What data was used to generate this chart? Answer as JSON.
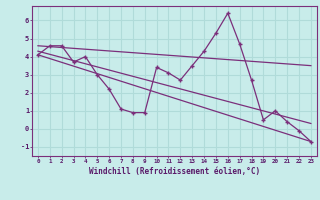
{
  "xlabel": "Windchill (Refroidissement éolien,°C)",
  "background_color": "#c8ecea",
  "line_color": "#7b2f7b",
  "grid_color": "#b0dbd9",
  "xlim": [
    -0.5,
    23.5
  ],
  "ylim": [
    -1.5,
    6.8
  ],
  "xticks": [
    0,
    1,
    2,
    3,
    4,
    5,
    6,
    7,
    8,
    9,
    10,
    11,
    12,
    13,
    14,
    15,
    16,
    17,
    18,
    19,
    20,
    21,
    22,
    23
  ],
  "yticks": [
    -1,
    0,
    1,
    2,
    3,
    4,
    5,
    6
  ],
  "series1_x": [
    0,
    1,
    2,
    3,
    4,
    5,
    6,
    7,
    8,
    9,
    10,
    11,
    12,
    13,
    14,
    15,
    16,
    17,
    18,
    19,
    20,
    21,
    22,
    23
  ],
  "series1_y": [
    4.1,
    4.6,
    4.6,
    3.7,
    4.0,
    3.0,
    2.2,
    1.1,
    0.9,
    0.9,
    3.4,
    3.1,
    2.7,
    3.5,
    4.3,
    5.3,
    6.4,
    4.7,
    2.7,
    0.5,
    1.0,
    0.4,
    -0.1,
    -0.7
  ],
  "trend1_x": [
    0,
    23
  ],
  "trend1_y": [
    4.1,
    -0.7
  ],
  "trend2_x": [
    0,
    23
  ],
  "trend2_y": [
    4.3,
    0.3
  ],
  "trend3_x": [
    0,
    23
  ],
  "trend3_y": [
    4.6,
    3.5
  ]
}
